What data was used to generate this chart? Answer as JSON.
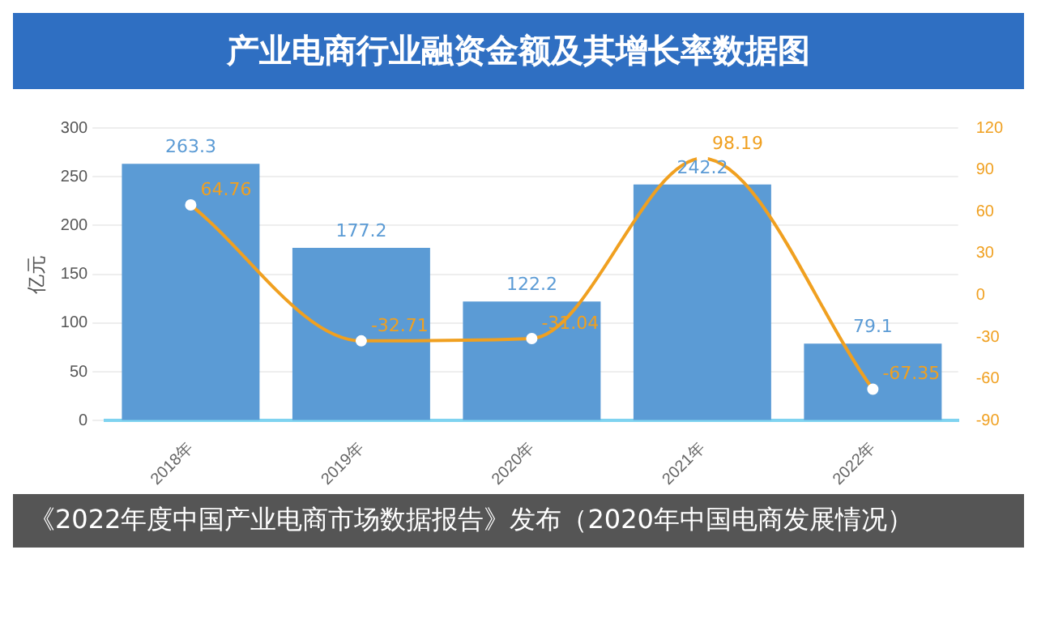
{
  "chart_data": {
    "type": "bar",
    "title": "产业电商行业融资金额及其增长率数据图",
    "ylabel": "亿元",
    "categories": [
      "2018年",
      "2019年",
      "2020年",
      "2021年",
      "2022年"
    ],
    "series": [
      {
        "color": "#5b9bd5",
        "values": [
          263.3,
          177.2,
          122.2,
          242.2,
          79.1
        ]
      },
      {
        "type": "line",
        "axis": "y2",
        "color": "#f0a020",
        "values": [
          64.76,
          -32.71,
          -31.04,
          98.19,
          -67.35
        ]
      }
    ],
    "ylim": [
      0,
      300
    ],
    "yticks": [
      0,
      50,
      100,
      150,
      200,
      250,
      300
    ],
    "y2lim": [
      -90,
      120
    ],
    "y2ticks": [
      -90,
      -60,
      -30,
      0,
      30,
      60,
      90,
      120
    ],
    "grid": "y",
    "data_labels": true,
    "marker": "circle",
    "annotations": [
      "《2022年度中国产业电商市场数据报告》发布（2020年中国电商发展情况）"
    ]
  }
}
